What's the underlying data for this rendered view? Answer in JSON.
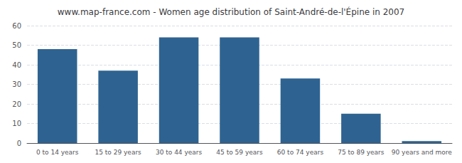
{
  "chart_data": {
    "type": "bar",
    "title": "www.map-france.com - Women age distribution of Saint-André-de-l'Épine in 2007",
    "categories": [
      "0 to 14 years",
      "15 to 29 years",
      "30 to 44 years",
      "45 to 59 years",
      "60 to 74 years",
      "75 to 89 years",
      "90 years and more"
    ],
    "values": [
      48,
      37,
      54,
      54,
      33,
      15,
      1
    ],
    "color": "#2e6391",
    "ylim": [
      0,
      60
    ],
    "yticks": [
      0,
      10,
      20,
      30,
      40,
      50,
      60
    ],
    "grid": true
  }
}
